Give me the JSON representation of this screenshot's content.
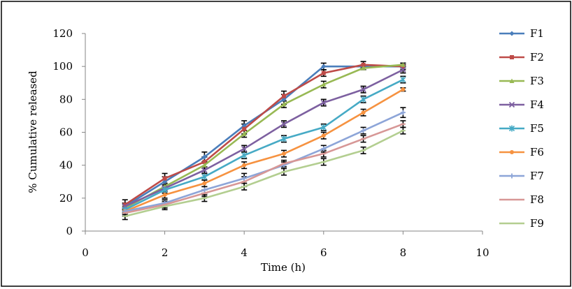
{
  "chart_data": {
    "type": "line",
    "xlabel": "Time (h)",
    "ylabel": "% Cumulative released",
    "xlim": [
      0,
      10
    ],
    "ylim": [
      0,
      120
    ],
    "xticks": [
      0,
      2,
      4,
      6,
      8,
      10
    ],
    "yticks": [
      0,
      20,
      40,
      60,
      80,
      100,
      120
    ],
    "grid": false,
    "legend_position": "right",
    "x": [
      1,
      2,
      3,
      4,
      5,
      6,
      7,
      8
    ],
    "series": [
      {
        "name": "F1",
        "color": "#4a7ebb",
        "marker": "diamond",
        "values": [
          15,
          30,
          45,
          64,
          80,
          100,
          100,
          100
        ],
        "error": [
          2,
          3,
          3,
          3,
          3,
          2,
          1,
          1
        ]
      },
      {
        "name": "F2",
        "color": "#be4b48",
        "marker": "square",
        "values": [
          16,
          32,
          42,
          62,
          82,
          96,
          101,
          100
        ],
        "error": [
          3,
          3,
          3,
          3,
          3,
          2,
          2,
          2
        ]
      },
      {
        "name": "F3",
        "color": "#98b954",
        "marker": "triangle",
        "values": [
          14,
          27,
          40,
          59,
          77,
          89,
          99,
          101
        ],
        "error": [
          2,
          2,
          2,
          2,
          2,
          2,
          1,
          1
        ]
      },
      {
        "name": "F4",
        "color": "#7d60a0",
        "marker": "x",
        "values": [
          15,
          26,
          37,
          50,
          65,
          78,
          86,
          98
        ],
        "error": [
          2,
          2,
          2,
          2,
          2,
          2,
          2,
          2
        ]
      },
      {
        "name": "F5",
        "color": "#46aac5",
        "marker": "star",
        "values": [
          13,
          25,
          33,
          46,
          56,
          63,
          80,
          92
        ],
        "error": [
          2,
          2,
          2,
          2,
          2,
          2,
          2,
          2
        ]
      },
      {
        "name": "F6",
        "color": "#f69240",
        "marker": "circle",
        "values": [
          12,
          22,
          29,
          40,
          47,
          58,
          72,
          86
        ],
        "error": [
          2,
          2,
          2,
          2,
          2,
          2,
          2,
          1
        ]
      },
      {
        "name": "F7",
        "color": "#8da5d8",
        "marker": "plus",
        "values": [
          12,
          17,
          25,
          32,
          40,
          50,
          61,
          72
        ],
        "error": [
          2,
          2,
          2,
          3,
          2,
          2,
          2,
          3
        ]
      },
      {
        "name": "F8",
        "color": "#d79796",
        "marker": "dash",
        "values": [
          11,
          16,
          23,
          30,
          41,
          47,
          56,
          65
        ],
        "error": [
          2,
          2,
          2,
          3,
          2,
          2,
          2,
          2
        ]
      },
      {
        "name": "F9",
        "color": "#b3ce90",
        "marker": "dash",
        "values": [
          9,
          15,
          20,
          27,
          36,
          42,
          49,
          61
        ],
        "error": [
          2,
          2,
          2,
          2,
          2,
          2,
          2,
          2
        ]
      }
    ]
  }
}
